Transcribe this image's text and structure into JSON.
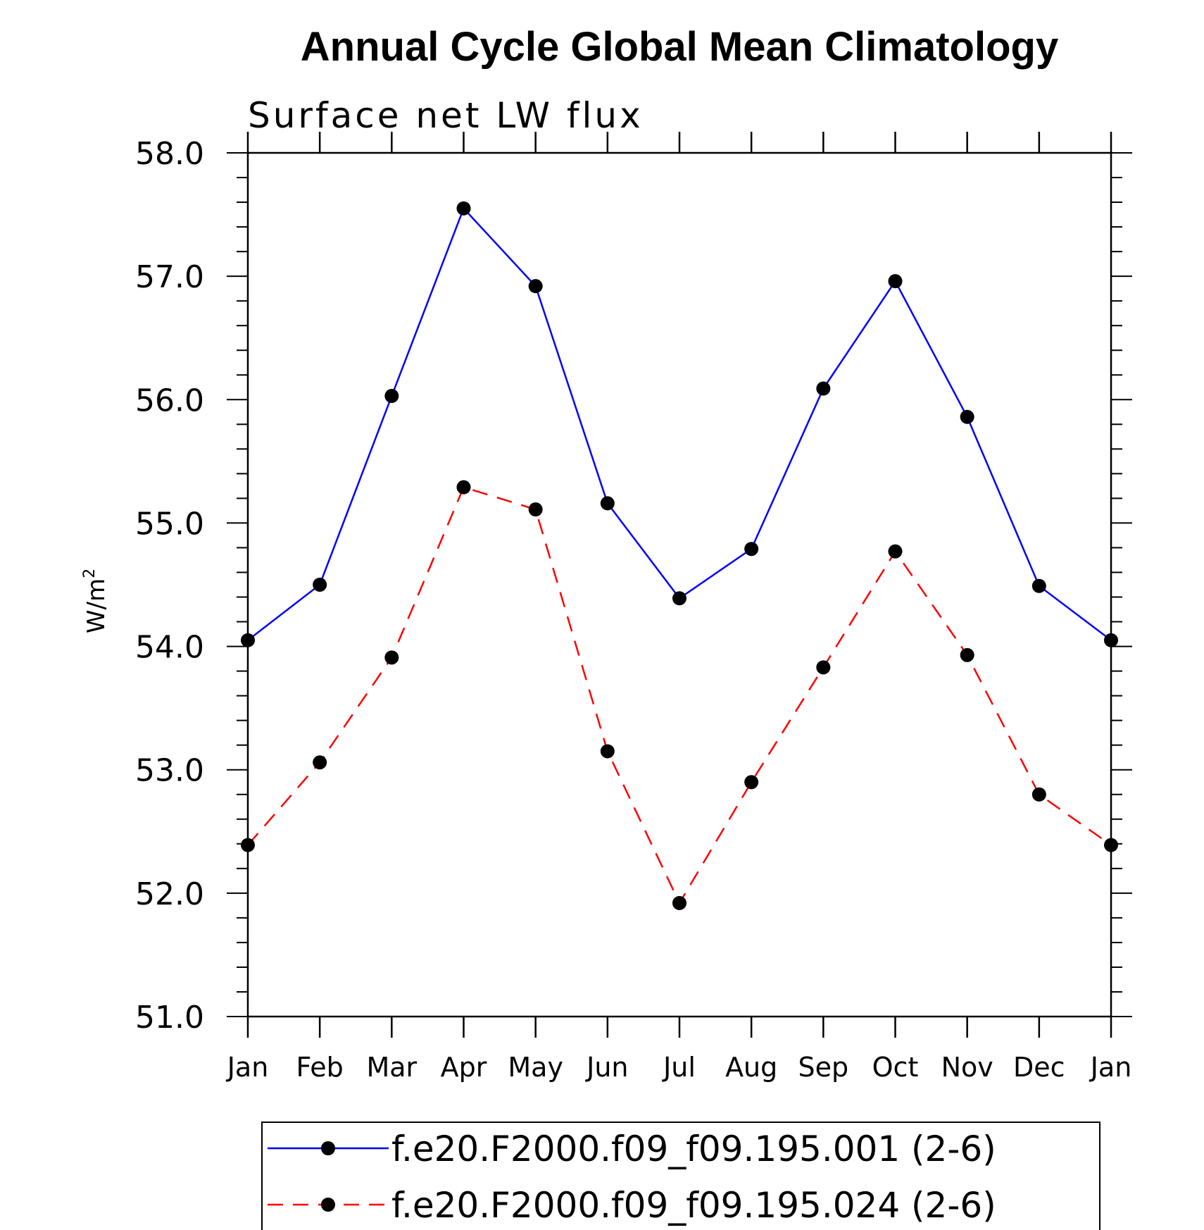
{
  "chart_data": {
    "type": "line",
    "title": "Annual Cycle Global Mean Climatology",
    "subtitle": "Surface net LW flux",
    "ylabel": "W/m",
    "ylabel_sup": "2",
    "xlabel": "",
    "categories": [
      "Jan",
      "Feb",
      "Mar",
      "Apr",
      "May",
      "Jun",
      "Jul",
      "Aug",
      "Sep",
      "Oct",
      "Nov",
      "Dec",
      "Jan"
    ],
    "ylim": [
      51.0,
      58.0
    ],
    "yticks": [
      "51.0",
      "52.0",
      "53.0",
      "54.0",
      "55.0",
      "56.0",
      "57.0",
      "58.0"
    ],
    "grid": false,
    "legend_position": "bottom",
    "series": [
      {
        "name": "f.e20.F2000.f09_f09.195.001 (2-6)",
        "color": "#0000ff",
        "dash": "solid",
        "values": [
          54.05,
          54.5,
          56.03,
          57.55,
          56.92,
          55.16,
          54.39,
          54.79,
          56.09,
          56.96,
          55.86,
          54.49,
          54.05
        ]
      },
      {
        "name": "f.e20.F2000.f09_f09.195.024 (2-6)",
        "color": "#ff0000",
        "dash": "dashed",
        "values": [
          52.39,
          53.06,
          53.91,
          55.29,
          55.11,
          53.15,
          51.92,
          52.9,
          53.83,
          54.77,
          53.93,
          52.8,
          52.39
        ]
      }
    ]
  }
}
